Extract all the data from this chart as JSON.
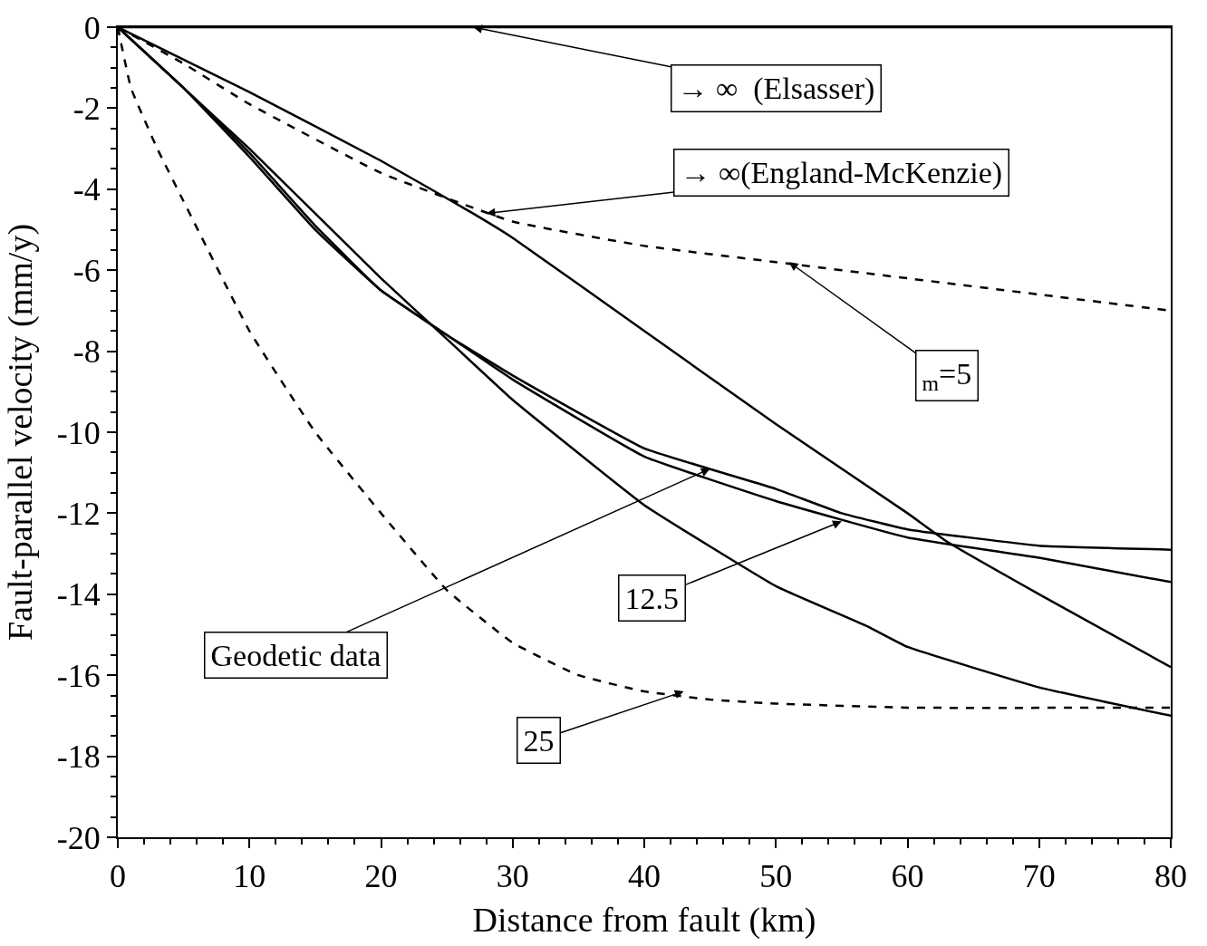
{
  "chart_data": {
    "type": "line",
    "xlabel": "Distance from fault (km)",
    "ylabel": "Fault-parallel velocity (mm/y)",
    "xlim": [
      0,
      80
    ],
    "xticks": [
      0,
      10,
      20,
      30,
      40,
      50,
      60,
      70,
      80
    ],
    "ylim": [
      -20,
      0
    ],
    "yticks": [
      0,
      -2,
      -4,
      -6,
      -8,
      -10,
      -12,
      -14,
      -16,
      -18,
      -20
    ],
    "marker": "none",
    "series": [
      {
        "color": "#000000",
        "x": [
          0,
          80
        ],
        "values": [
          0,
          0
        ]
      },
      {
        "color": "#000000",
        "x": [
          0,
          10,
          20,
          27,
          30,
          40,
          50,
          60,
          63,
          70,
          80
        ],
        "values": [
          0,
          -1.6,
          -3.3,
          -4.6,
          -5.2,
          -7.5,
          -9.8,
          -12.0,
          -12.7,
          -14.0,
          -15.8
        ]
      },
      {
        "color": "#000000",
        "line_style": "dashed",
        "x": [
          0,
          5,
          10,
          20,
          30,
          40,
          50,
          60,
          70,
          80
        ],
        "values": [
          0,
          -0.9,
          -1.9,
          -3.6,
          -4.8,
          -5.4,
          -5.8,
          -6.2,
          -6.6,
          -7.0
        ]
      },
      {
        "color": "#000000",
        "x": [
          0,
          5,
          10,
          15,
          20,
          25,
          30,
          40,
          50,
          55,
          60,
          70,
          80
        ],
        "values": [
          0,
          -1.5,
          -3.2,
          -5.0,
          -6.5,
          -7.6,
          -8.6,
          -10.4,
          -11.4,
          -12.0,
          -12.4,
          -12.8,
          -12.9
        ]
      },
      {
        "color": "#000000",
        "x": [
          0,
          5,
          10,
          15,
          20,
          25,
          30,
          40,
          50,
          60,
          70,
          80
        ],
        "values": [
          0,
          -1.5,
          -3.1,
          -4.9,
          -6.5,
          -7.6,
          -8.7,
          -10.6,
          -11.7,
          -12.6,
          -13.1,
          -13.7
        ]
      },
      {
        "color": "#000000",
        "x": [
          0,
          10,
          20,
          25,
          30,
          40,
          50,
          57,
          60,
          70,
          80
        ],
        "values": [
          0,
          -3.0,
          -6.2,
          -7.7,
          -9.2,
          -11.8,
          -13.8,
          -14.8,
          -15.3,
          -16.3,
          -17.0
        ]
      },
      {
        "color": "#000000",
        "line_style": "dashed",
        "x": [
          0,
          1,
          3,
          5,
          10,
          15,
          20,
          25,
          30,
          35,
          40,
          45,
          50,
          60,
          80
        ],
        "values": [
          0,
          -1.5,
          -3.0,
          -4.3,
          -7.5,
          -10.0,
          -12.0,
          -13.9,
          -15.2,
          -16.0,
          -16.4,
          -16.6,
          -16.7,
          -16.8,
          -16.8
        ]
      }
    ],
    "annotations": [
      {
        "text": "→ ∞  (Elsasser)",
        "x": 27,
        "y": 0
      },
      {
        "text": "→ ∞(England-McKenzie)",
        "x": 28,
        "y": -4.6
      },
      {
        "text": "$_{m}$=5",
        "x": 51,
        "y": -5.8
      },
      {
        "text": "Geodetic data",
        "x": 45,
        "y": -10.9
      },
      {
        "text": "12.5",
        "x": 55,
        "y": -12.2
      },
      {
        "text": "25",
        "x": 43,
        "y": -16.4
      }
    ]
  }
}
